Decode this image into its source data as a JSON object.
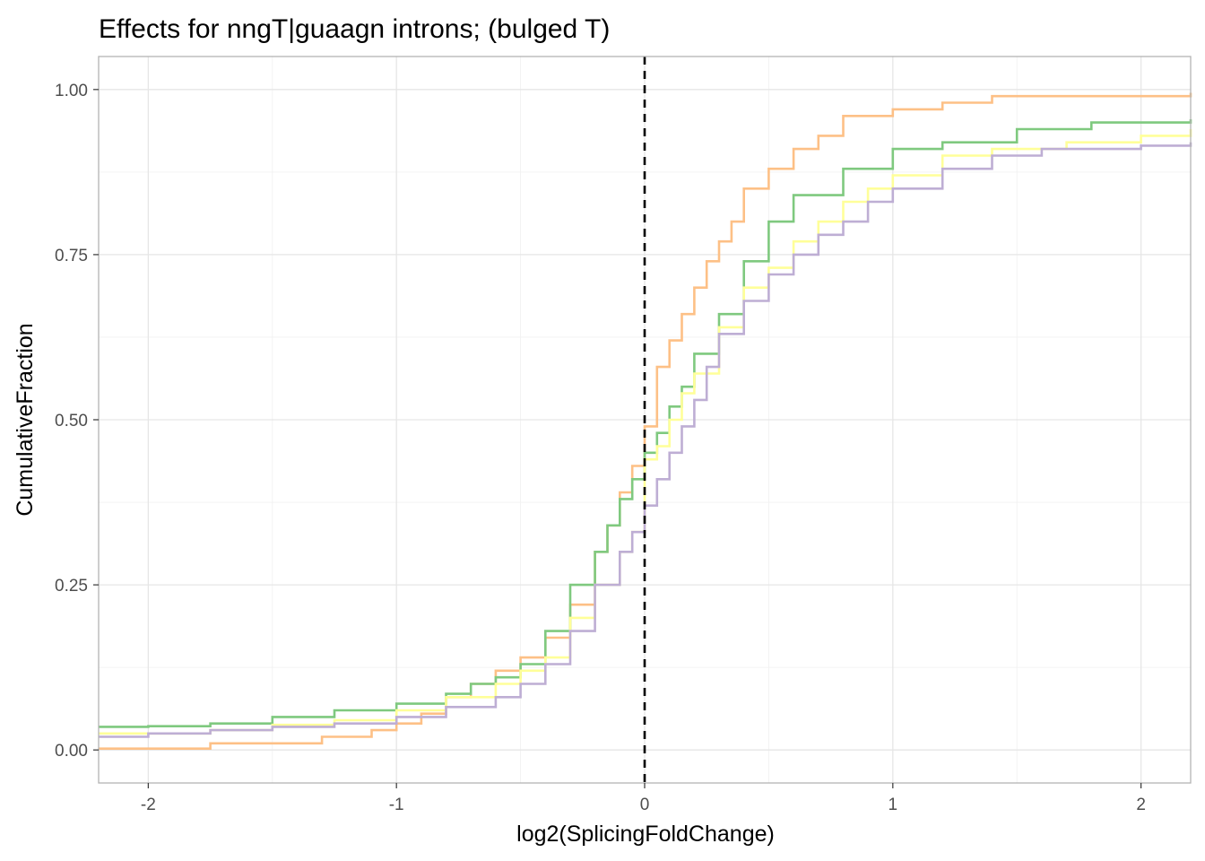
{
  "chart_data": {
    "type": "line",
    "step": true,
    "title": "Effects for nngT|guaagn introns; (bulged T)",
    "xlabel": "log2(SplicingFoldChange)",
    "ylabel": "CumulativeFraction",
    "xlim": [
      -2.2,
      2.2
    ],
    "ylim": [
      -0.05,
      1.05
    ],
    "x_ticks": [
      -2,
      -1,
      0,
      1,
      2
    ],
    "x_tick_labels": [
      "-2",
      "-1",
      "0",
      "1",
      "2"
    ],
    "y_ticks": [
      0,
      0.25,
      0.5,
      0.75,
      1.0
    ],
    "y_tick_labels": [
      "0.00",
      "0.25",
      "0.50",
      "0.75",
      "1.00"
    ],
    "grid": true,
    "legend": "none",
    "reference_line": {
      "x": 0,
      "style": "dashed",
      "color": "#000000"
    },
    "series": [
      {
        "color": "#fdc086",
        "x": [
          -2.2,
          -1.75,
          -1.3,
          -1.1,
          -1.0,
          -0.9,
          -0.8,
          -0.7,
          -0.6,
          -0.5,
          -0.4,
          -0.3,
          -0.2,
          -0.15,
          -0.1,
          -0.05,
          0.0,
          0.05,
          0.1,
          0.15,
          0.2,
          0.25,
          0.3,
          0.35,
          0.4,
          0.5,
          0.6,
          0.7,
          0.8,
          1.0,
          1.2,
          1.4,
          2.2
        ],
        "y": [
          0.002,
          0.01,
          0.02,
          0.03,
          0.04,
          0.055,
          0.08,
          0.1,
          0.12,
          0.14,
          0.17,
          0.22,
          0.3,
          0.34,
          0.39,
          0.43,
          0.49,
          0.58,
          0.62,
          0.66,
          0.7,
          0.74,
          0.77,
          0.8,
          0.85,
          0.88,
          0.91,
          0.93,
          0.96,
          0.97,
          0.98,
          0.99,
          0.995
        ]
      },
      {
        "color": "#7fc97f",
        "x": [
          -2.2,
          -2.0,
          -1.75,
          -1.5,
          -1.25,
          -1.0,
          -0.8,
          -0.7,
          -0.6,
          -0.5,
          -0.4,
          -0.3,
          -0.2,
          -0.15,
          -0.1,
          -0.05,
          0.0,
          0.05,
          0.1,
          0.15,
          0.2,
          0.3,
          0.4,
          0.5,
          0.6,
          0.8,
          1.0,
          1.2,
          1.5,
          1.8,
          2.2
        ],
        "y": [
          0.035,
          0.036,
          0.04,
          0.05,
          0.06,
          0.07,
          0.085,
          0.1,
          0.11,
          0.13,
          0.18,
          0.25,
          0.3,
          0.34,
          0.38,
          0.41,
          0.45,
          0.48,
          0.52,
          0.55,
          0.6,
          0.66,
          0.74,
          0.8,
          0.84,
          0.88,
          0.91,
          0.92,
          0.94,
          0.95,
          0.955
        ]
      },
      {
        "color": "#ffff99",
        "x": [
          -2.2,
          -1.75,
          -1.5,
          -1.25,
          -1.0,
          -0.8,
          -0.6,
          -0.5,
          -0.4,
          -0.3,
          -0.2,
          -0.1,
          -0.05,
          0.0,
          0.05,
          0.1,
          0.15,
          0.2,
          0.3,
          0.4,
          0.5,
          0.6,
          0.7,
          0.8,
          0.9,
          1.0,
          1.2,
          1.4,
          1.7,
          2.0,
          2.2
        ],
        "y": [
          0.025,
          0.03,
          0.038,
          0.045,
          0.06,
          0.08,
          0.1,
          0.12,
          0.14,
          0.2,
          0.25,
          0.3,
          0.33,
          0.44,
          0.46,
          0.5,
          0.54,
          0.57,
          0.64,
          0.7,
          0.73,
          0.77,
          0.8,
          0.83,
          0.85,
          0.87,
          0.9,
          0.91,
          0.92,
          0.93,
          0.94
        ]
      },
      {
        "color": "#beaed4",
        "x": [
          -2.2,
          -2.0,
          -1.75,
          -1.5,
          -1.25,
          -1.0,
          -0.8,
          -0.6,
          -0.5,
          -0.4,
          -0.3,
          -0.2,
          -0.1,
          -0.05,
          0.0,
          0.05,
          0.1,
          0.15,
          0.2,
          0.25,
          0.3,
          0.4,
          0.5,
          0.6,
          0.7,
          0.8,
          0.9,
          1.0,
          1.2,
          1.4,
          1.6,
          2.0,
          2.2
        ],
        "y": [
          0.02,
          0.025,
          0.03,
          0.035,
          0.04,
          0.05,
          0.065,
          0.08,
          0.1,
          0.13,
          0.18,
          0.25,
          0.3,
          0.33,
          0.37,
          0.41,
          0.45,
          0.49,
          0.53,
          0.58,
          0.63,
          0.68,
          0.72,
          0.75,
          0.78,
          0.8,
          0.83,
          0.85,
          0.88,
          0.9,
          0.91,
          0.915,
          0.92
        ]
      }
    ]
  }
}
